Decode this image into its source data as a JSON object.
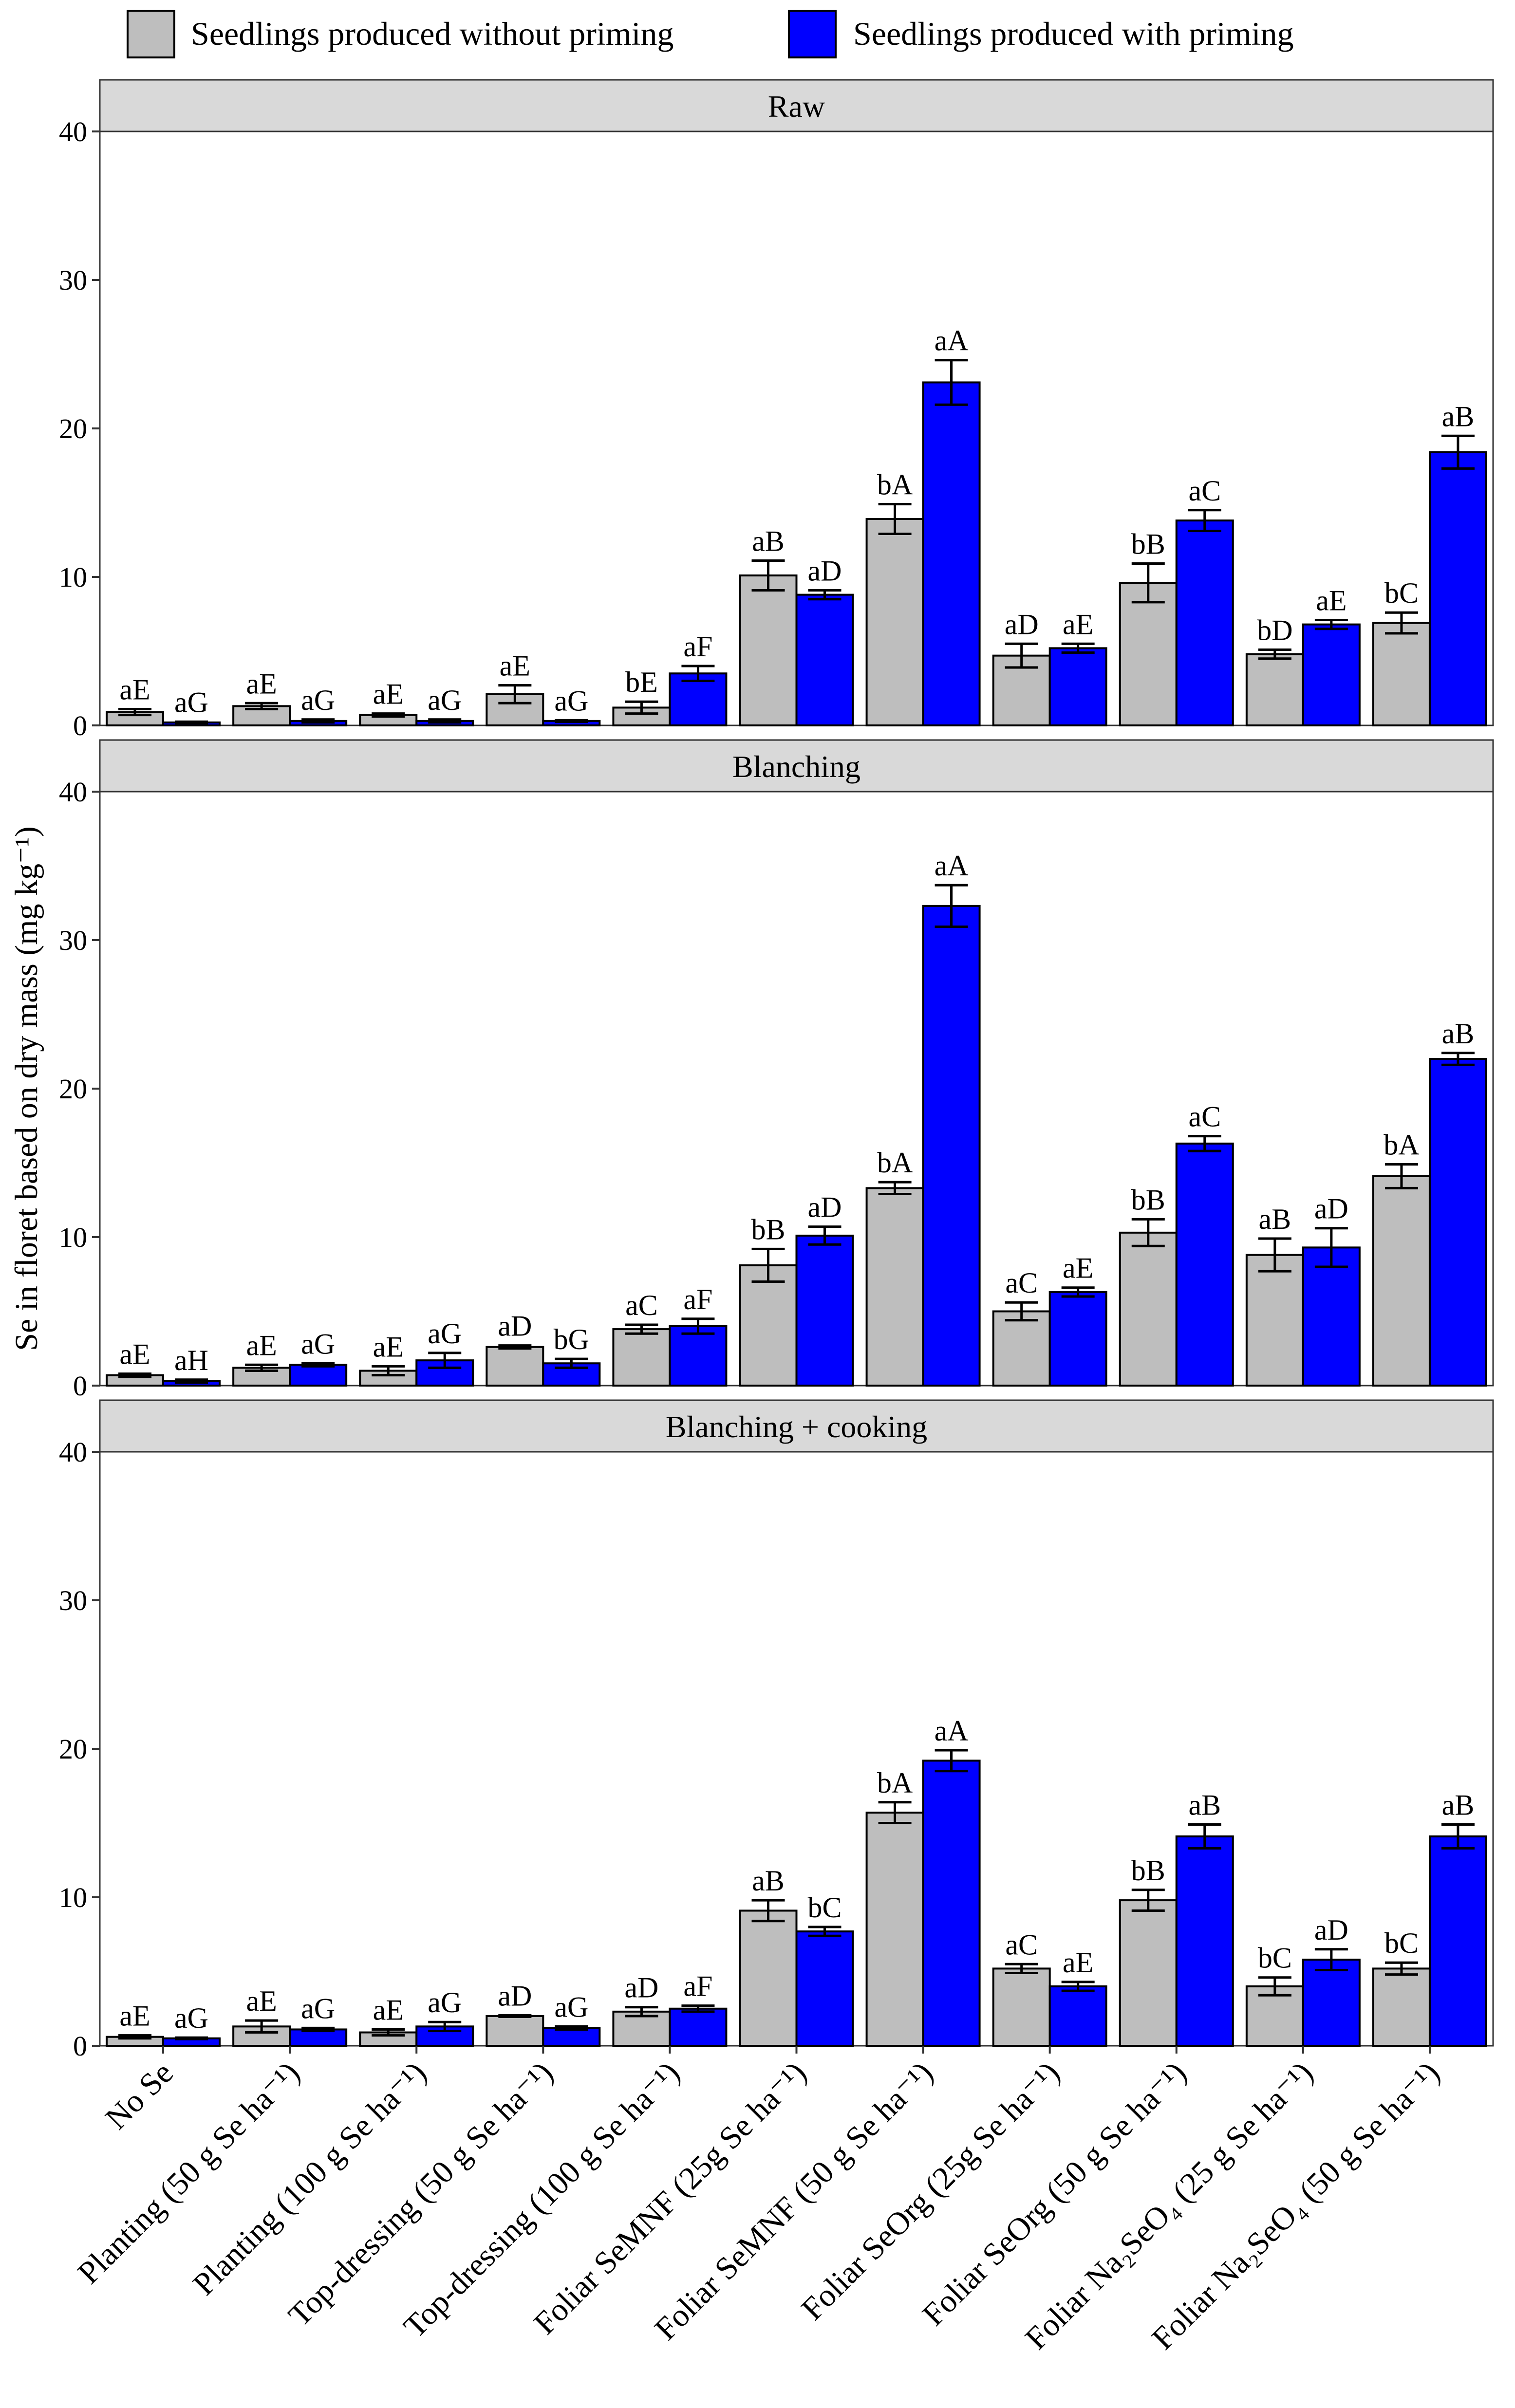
{
  "chart_data": {
    "type": "bar",
    "ylabel": "Se in floret based on dry mass (mg kg⁻¹)",
    "ylim": [
      0,
      40
    ],
    "yticks": [
      0,
      10,
      20,
      30,
      40
    ],
    "legend": {
      "position": "top",
      "entries": [
        {
          "name": "Seedlings produced without priming",
          "color": "#BEBEBE"
        },
        {
          "name": "Seedlings produced with priming",
          "color": "#0000FF"
        }
      ]
    },
    "categories": [
      "No Se",
      "Planting (50 g Se ha⁻¹)",
      "Planting (100 g Se ha⁻¹)",
      "Top-dressing (50 g Se ha⁻¹)",
      "Top-dressing (100 g Se ha⁻¹)",
      "Foliar SeMNF (25g Se ha⁻¹)",
      "Foliar SeMNF (50 g Se ha⁻¹)",
      "Foliar SeOrg (25g Se ha⁻¹)",
      "Foliar SeOrg (50 g Se ha⁻¹)",
      "Foliar Na₂SeO₄ (25 g Se ha⁻¹)",
      "Foliar Na₂SeO₄ (50 g Se ha⁻¹)"
    ],
    "panels": [
      {
        "title": "Raw",
        "series": [
          {
            "name": "Seedlings produced without priming",
            "values": [
              0.9,
              1.3,
              0.7,
              2.1,
              1.2,
              10.1,
              13.9,
              4.7,
              9.6,
              4.8,
              6.9
            ],
            "errors": [
              0.2,
              0.2,
              0.1,
              0.6,
              0.4,
              1.0,
              1.0,
              0.8,
              1.3,
              0.3,
              0.7
            ],
            "labels": [
              "aE",
              "aE",
              "aE",
              "aE",
              "bE",
              "aB",
              "bA",
              "aD",
              "bB",
              "bD",
              "bC"
            ]
          },
          {
            "name": "Seedlings produced with priming",
            "values": [
              0.2,
              0.3,
              0.3,
              0.3,
              3.5,
              8.8,
              23.1,
              5.2,
              13.8,
              6.8,
              18.4
            ],
            "errors": [
              0.05,
              0.1,
              0.1,
              0.05,
              0.5,
              0.3,
              1.5,
              0.3,
              0.7,
              0.3,
              1.1
            ],
            "labels": [
              "aG",
              "aG",
              "aG",
              "aG",
              "aF",
              "aD",
              "aA",
              "aE",
              "aC",
              "aE",
              "aB"
            ]
          }
        ]
      },
      {
        "title": "Blanching",
        "series": [
          {
            "name": "Seedlings produced without priming",
            "values": [
              0.7,
              1.2,
              1.0,
              2.6,
              3.8,
              8.1,
              13.3,
              5.0,
              10.3,
              8.8,
              14.1
            ],
            "errors": [
              0.1,
              0.2,
              0.3,
              0.1,
              0.3,
              1.1,
              0.4,
              0.6,
              0.9,
              1.1,
              0.8
            ],
            "labels": [
              "aE",
              "aE",
              "aE",
              "aD",
              "aC",
              "bB",
              "bA",
              "aC",
              "bB",
              "aB",
              "bA"
            ]
          },
          {
            "name": "Seedlings produced with priming",
            "values": [
              0.3,
              1.4,
              1.7,
              1.5,
              4.0,
              10.1,
              32.3,
              6.3,
              16.3,
              9.3,
              22.0
            ],
            "errors": [
              0.1,
              0.1,
              0.5,
              0.3,
              0.5,
              0.6,
              1.4,
              0.3,
              0.5,
              1.3,
              0.4
            ],
            "labels": [
              "aH",
              "aG",
              "aG",
              "bG",
              "aF",
              "aD",
              "aA",
              "aE",
              "aC",
              "aD",
              "aB"
            ]
          }
        ]
      },
      {
        "title": "Blanching + cooking",
        "series": [
          {
            "name": "Seedlings produced without priming",
            "values": [
              0.6,
              1.3,
              0.9,
              2.0,
              2.3,
              9.1,
              15.7,
              5.2,
              9.8,
              4.0,
              5.2
            ],
            "errors": [
              0.1,
              0.4,
              0.2,
              0.05,
              0.3,
              0.7,
              0.7,
              0.3,
              0.7,
              0.6,
              0.4
            ],
            "labels": [
              "aE",
              "aE",
              "aE",
              "aD",
              "aD",
              "aB",
              "bA",
              "aC",
              "bB",
              "bC",
              "bC"
            ]
          },
          {
            "name": "Seedlings produced with priming",
            "values": [
              0.5,
              1.1,
              1.3,
              1.2,
              2.5,
              7.7,
              19.2,
              4.0,
              14.1,
              5.8,
              14.1
            ],
            "errors": [
              0.05,
              0.1,
              0.3,
              0.1,
              0.2,
              0.3,
              0.7,
              0.3,
              0.8,
              0.7,
              0.8
            ],
            "labels": [
              "aG",
              "aG",
              "aG",
              "aG",
              "aF",
              "bC",
              "aA",
              "aE",
              "aB",
              "aD",
              "aB"
            ]
          }
        ]
      }
    ]
  }
}
